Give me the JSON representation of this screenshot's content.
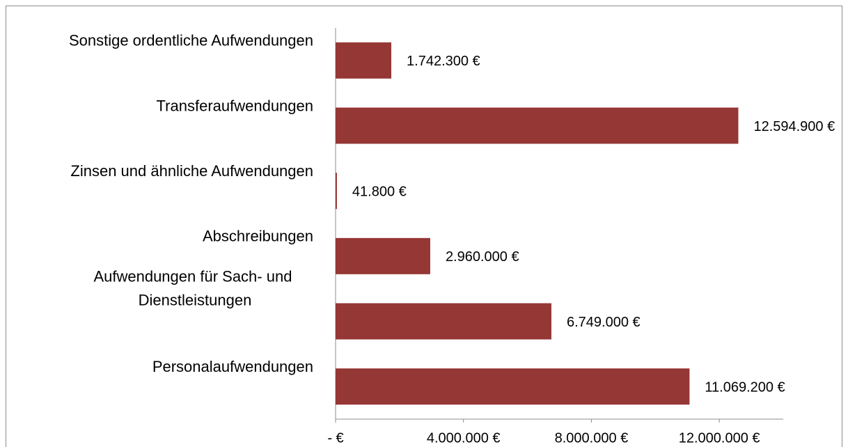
{
  "chart_data": {
    "type": "bar",
    "orientation": "horizontal",
    "categories": [
      "Sonstige ordentliche Aufwendungen",
      "Transferaufwendungen",
      "Zinsen und ähnliche Aufwendungen",
      "Abschreibungen",
      "Aufwendungen für Sach- und Dienstleistungen",
      "Personalaufwendungen"
    ],
    "values": [
      1742300,
      12594900,
      41800,
      2960000,
      6749000,
      11069200
    ],
    "value_labels": [
      "1.742.300 €",
      "12.594.900 €",
      "41.800 €",
      "2.960.000 €",
      "6.749.000 €",
      "11.069.200 €"
    ],
    "color": "#953735",
    "xlim": [
      0,
      14000000
    ],
    "xticks": [
      {
        "value": 0,
        "label": "-   €"
      },
      {
        "value": 4000000,
        "label": "4.000.000 €"
      },
      {
        "value": 8000000,
        "label": "8.000.000 €"
      },
      {
        "value": 12000000,
        "label": "12.000.000 €"
      }
    ],
    "grid": false
  }
}
